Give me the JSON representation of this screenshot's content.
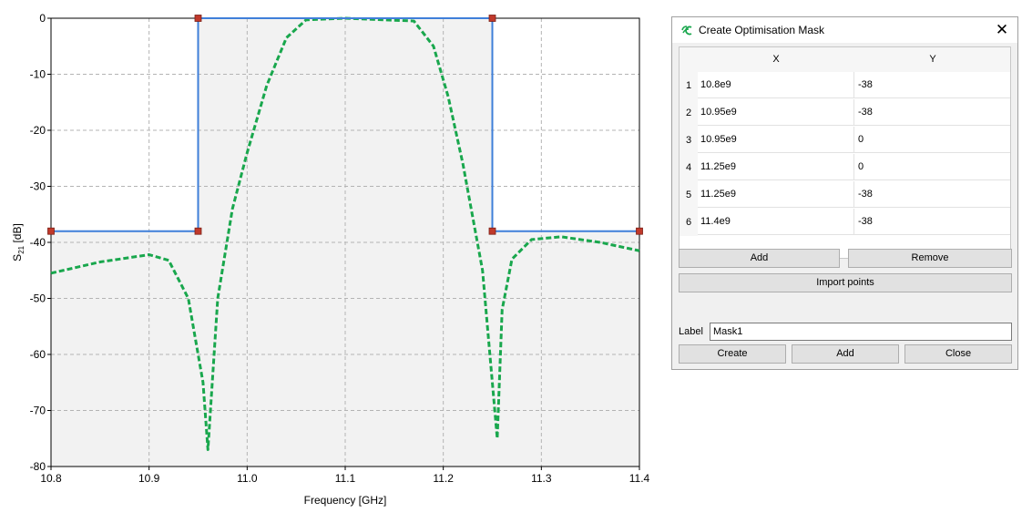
{
  "plot": {
    "xlabel": "Frequency [GHz]",
    "ylabel_main": "S",
    "ylabel_sub": "21",
    "ylabel_unit": " [dB]",
    "colors": {
      "mask": "#3f7fd9",
      "mask_marker": "#c0392b",
      "response": "#19a74d",
      "shade": "#f2f2f2",
      "grid": "#b4b4b4"
    }
  },
  "chart_data": {
    "type": "line",
    "title": "",
    "xlabel": "Frequency [GHz]",
    "ylabel": "S21 [dB]",
    "xlim": [
      10.8,
      11.4
    ],
    "ylim": [
      -80,
      0
    ],
    "xticks": [
      10.8,
      10.9,
      11.0,
      11.1,
      11.2,
      11.3,
      11.4
    ],
    "xtick_labels": [
      "10.8",
      "10.9",
      "11.0",
      "11.1",
      "11.2",
      "11.3",
      "11.4"
    ],
    "yticks": [
      0,
      -10,
      -20,
      -30,
      -40,
      -50,
      -60,
      -70,
      -80
    ],
    "ytick_labels": [
      "0",
      "-10",
      "-20",
      "-30",
      "-40",
      "-50",
      "-60",
      "-70",
      "-80"
    ],
    "grid": true,
    "series": [
      {
        "style": "solid-with-markers",
        "x": [
          10.8,
          10.95,
          10.95,
          11.25,
          11.25,
          11.4
        ],
        "y": [
          -38,
          -38,
          0,
          0,
          -38,
          -38
        ]
      },
      {
        "style": "dashed",
        "x": [
          10.8,
          10.85,
          10.9,
          10.92,
          10.94,
          10.955,
          10.96,
          10.97,
          10.985,
          11.0,
          11.02,
          11.04,
          11.06,
          11.1,
          11.17,
          11.19,
          11.205,
          11.22,
          11.24,
          11.25,
          11.255,
          11.26,
          11.27,
          11.29,
          11.32,
          11.36,
          11.4
        ],
        "y": [
          -45.5,
          -43.5,
          -42.2,
          -43.2,
          -50,
          -65,
          -77,
          -50,
          -34,
          -24,
          -12,
          -3.5,
          -0.3,
          0,
          -0.5,
          -5,
          -14,
          -26,
          -45,
          -65,
          -75,
          -52,
          -43,
          -39.5,
          -39,
          -40,
          -41.5
        ]
      }
    ]
  },
  "dialog": {
    "title": "Create Optimisation Mask",
    "close_label": "✕",
    "table": {
      "headers": [
        "X",
        "Y"
      ],
      "rows": [
        {
          "num": "1",
          "x": "10.8e9",
          "y": "-38"
        },
        {
          "num": "2",
          "x": "10.95e9",
          "y": "-38"
        },
        {
          "num": "3",
          "x": "10.95e9",
          "y": "0"
        },
        {
          "num": "4",
          "x": "11.25e9",
          "y": "0"
        },
        {
          "num": "5",
          "x": "11.25e9",
          "y": "-38"
        },
        {
          "num": "6",
          "x": "11.4e9",
          "y": "-38"
        }
      ]
    },
    "add_row_label": "Add",
    "remove_label": "Remove",
    "import_label": "Import points",
    "label_caption": "Label",
    "label_value": "Mask1",
    "create_label": "Create",
    "add_label": "Add",
    "close_button_label": "Close"
  }
}
